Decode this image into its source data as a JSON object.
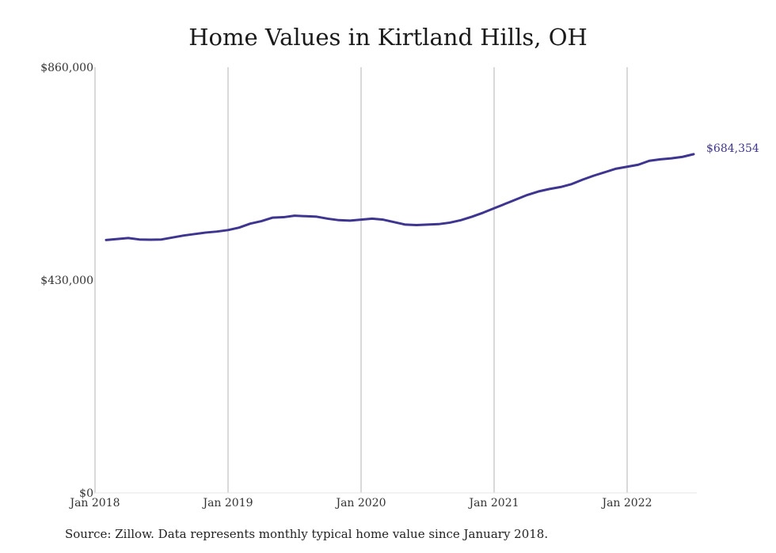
{
  "chart_data": {
    "type": "line",
    "title": "Home Values in Kirtland Hills, OH",
    "xlabel": "",
    "ylabel": "",
    "ylim": [
      0,
      860000
    ],
    "y_ticks": [
      {
        "value": 0,
        "label": "$0"
      },
      {
        "value": 430000,
        "label": "$430,000"
      },
      {
        "value": 860000,
        "label": "$860,000"
      }
    ],
    "x_ticks": [
      {
        "value": 0,
        "label": "Jan 2018"
      },
      {
        "value": 12,
        "label": "Jan 2019"
      },
      {
        "value": 24,
        "label": "Jan 2020"
      },
      {
        "value": 36,
        "label": "Jan 2021"
      },
      {
        "value": 48,
        "label": "Jan 2022"
      }
    ],
    "grid": "vertical",
    "line_color": "#3d358f",
    "series": [
      {
        "values": [
          511000,
          513000,
          515000,
          512000,
          511500,
          512000,
          516000,
          520000,
          523000,
          526000,
          528000,
          531000,
          536000,
          544000,
          549000,
          556000,
          557000,
          560000,
          559000,
          558000,
          554000,
          551000,
          550000,
          552000,
          554000,
          552000,
          547000,
          542000,
          541000,
          542000,
          543000,
          546000,
          551000,
          558000,
          566000,
          575000,
          584000,
          593000,
          602000,
          609000,
          614000,
          618000,
          624000,
          633000,
          641000,
          648000,
          655000,
          659000,
          663000,
          671000,
          674000,
          676000,
          679000,
          684354
        ]
      }
    ],
    "end_label": "$684,354"
  },
  "source_note": "Source: Zillow. Data represents monthly typical home value since January 2018."
}
